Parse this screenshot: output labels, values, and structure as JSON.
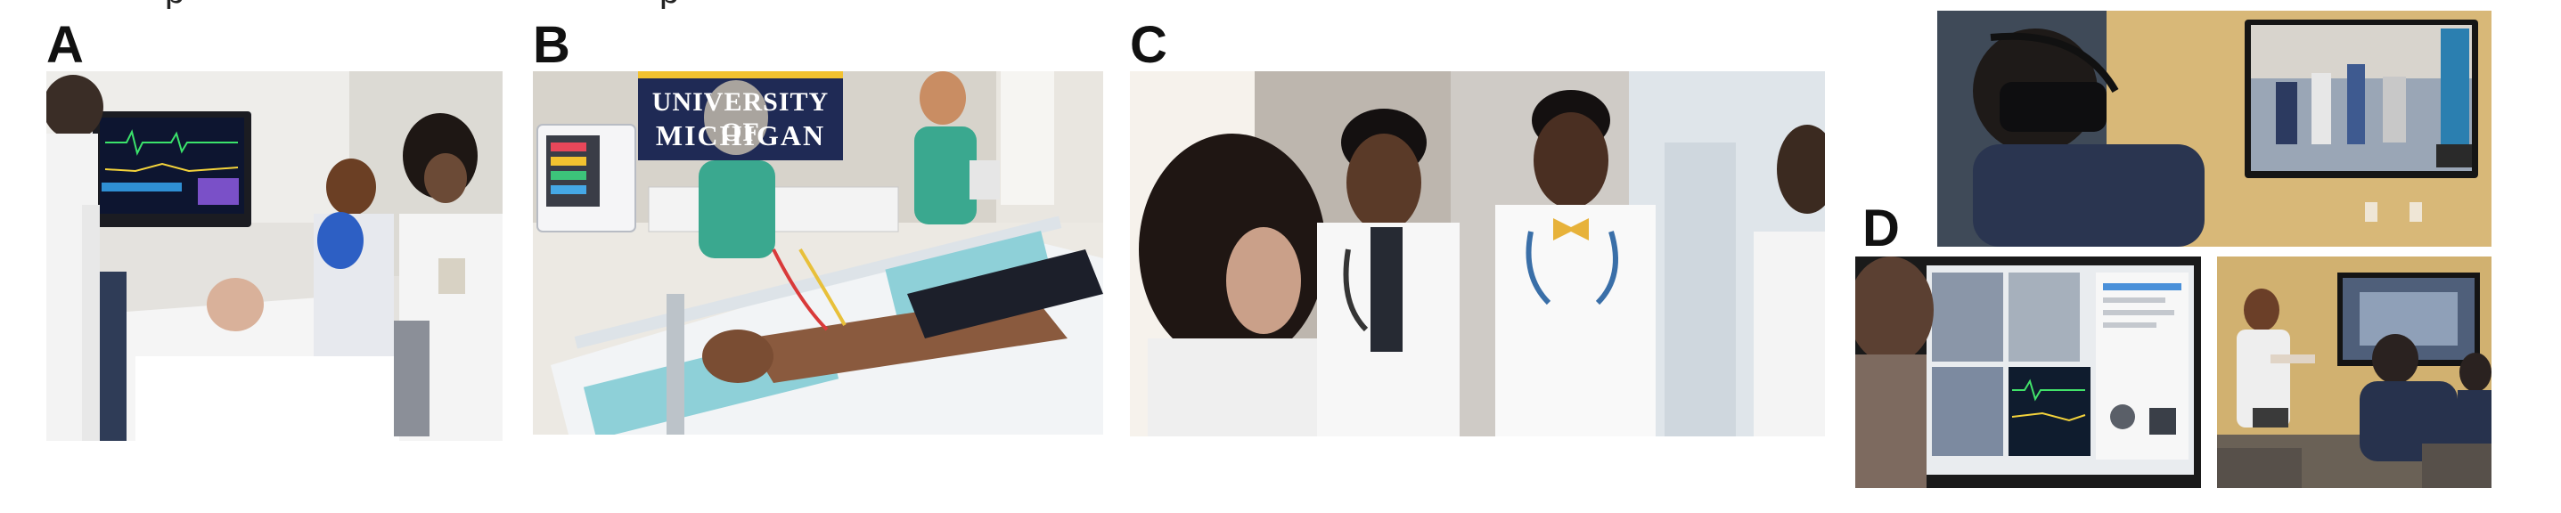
{
  "panels": {
    "a": {
      "label": "A"
    },
    "b": {
      "label": "B",
      "banner_line1": "UNIVERSITY OF",
      "banner_line2": "MICHIGAN"
    },
    "c": {
      "label": "C"
    },
    "d": {
      "label": "D"
    }
  },
  "colors": {
    "background": "#ffffff",
    "banner_navy": "#1f2a55",
    "banner_maize": "#f2c230",
    "avatar_teal": "#3aa88f",
    "wall_gold": "#d6b476",
    "scrubs_navy": "#2a3550"
  }
}
